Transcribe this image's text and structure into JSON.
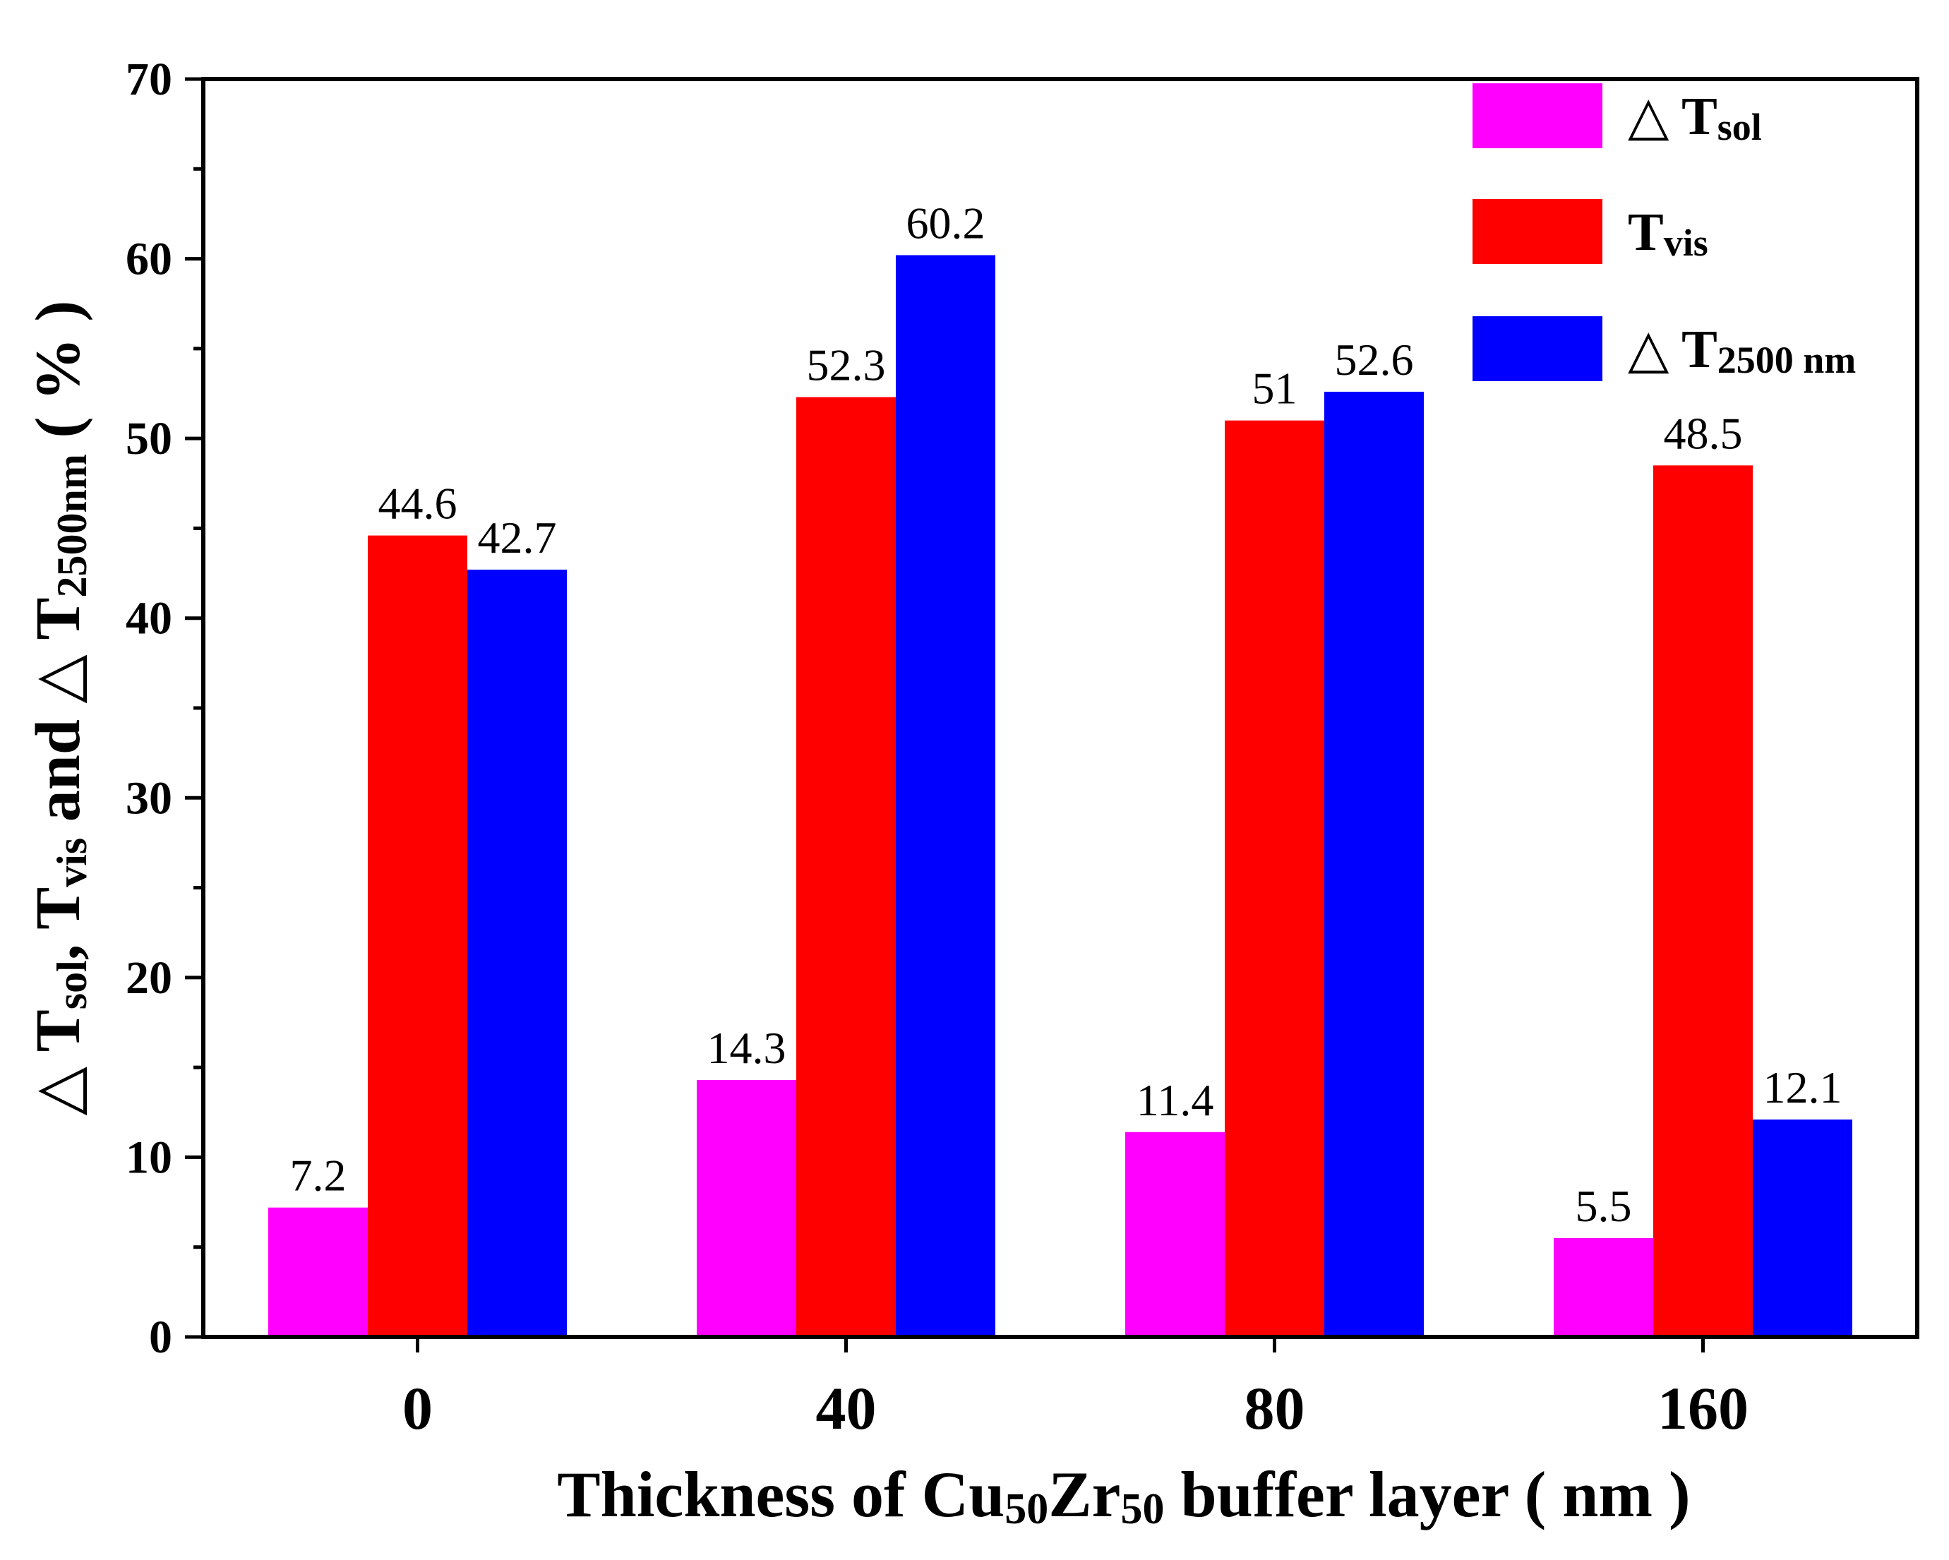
{
  "chart_data": {
    "type": "bar",
    "title": "",
    "categories": [
      "0",
      "40",
      "80",
      "160"
    ],
    "series": [
      {
        "name": "Δ Tsol",
        "legend_symbol": "△",
        "legend_main": "T",
        "legend_sub": "sol",
        "color": "#ff00ff",
        "values": [
          7.2,
          14.3,
          11.4,
          5.5
        ],
        "labels": [
          "7.2",
          "14.3",
          "11.4",
          "5.5"
        ]
      },
      {
        "name": "Tvis",
        "legend_symbol": "",
        "legend_main": "T",
        "legend_sub": "vis",
        "color": "#ff0000",
        "values": [
          44.6,
          52.3,
          51.0,
          48.5
        ],
        "labels": [
          "44.6",
          "52.3",
          "51",
          "48.5"
        ]
      },
      {
        "name": "Δ T2500 nm",
        "legend_symbol": "△",
        "legend_main": "T",
        "legend_sub": "2500 nm",
        "color": "#0000ff",
        "values": [
          42.7,
          60.2,
          52.6,
          12.1
        ],
        "labels": [
          "42.7",
          "60.2",
          "52.6",
          "12.1"
        ]
      }
    ],
    "xlabel": {
      "parts": [
        {
          "t": "Thickness of Cu",
          "sub": false
        },
        {
          "t": "50",
          "sub": true
        },
        {
          "t": "Zr",
          "sub": false
        },
        {
          "t": "50",
          "sub": true
        },
        {
          "t": " buffer layer ( nm )",
          "sub": false
        }
      ]
    },
    "ylabel": {
      "parts": [
        {
          "t": "△ T",
          "sub": false
        },
        {
          "t": "sol",
          "sub": true
        },
        {
          "t": ", T",
          "sub": false
        },
        {
          "t": "vis",
          "sub": true
        },
        {
          "t": " and △ T",
          "sub": false
        },
        {
          "t": "2500nm",
          "sub": true
        },
        {
          "t": " ( % )",
          "sub": false
        }
      ]
    },
    "ylim": [
      0,
      70
    ],
    "yticks": [
      0,
      10,
      20,
      30,
      40,
      50,
      60,
      70
    ],
    "legend_position": "top-right"
  }
}
